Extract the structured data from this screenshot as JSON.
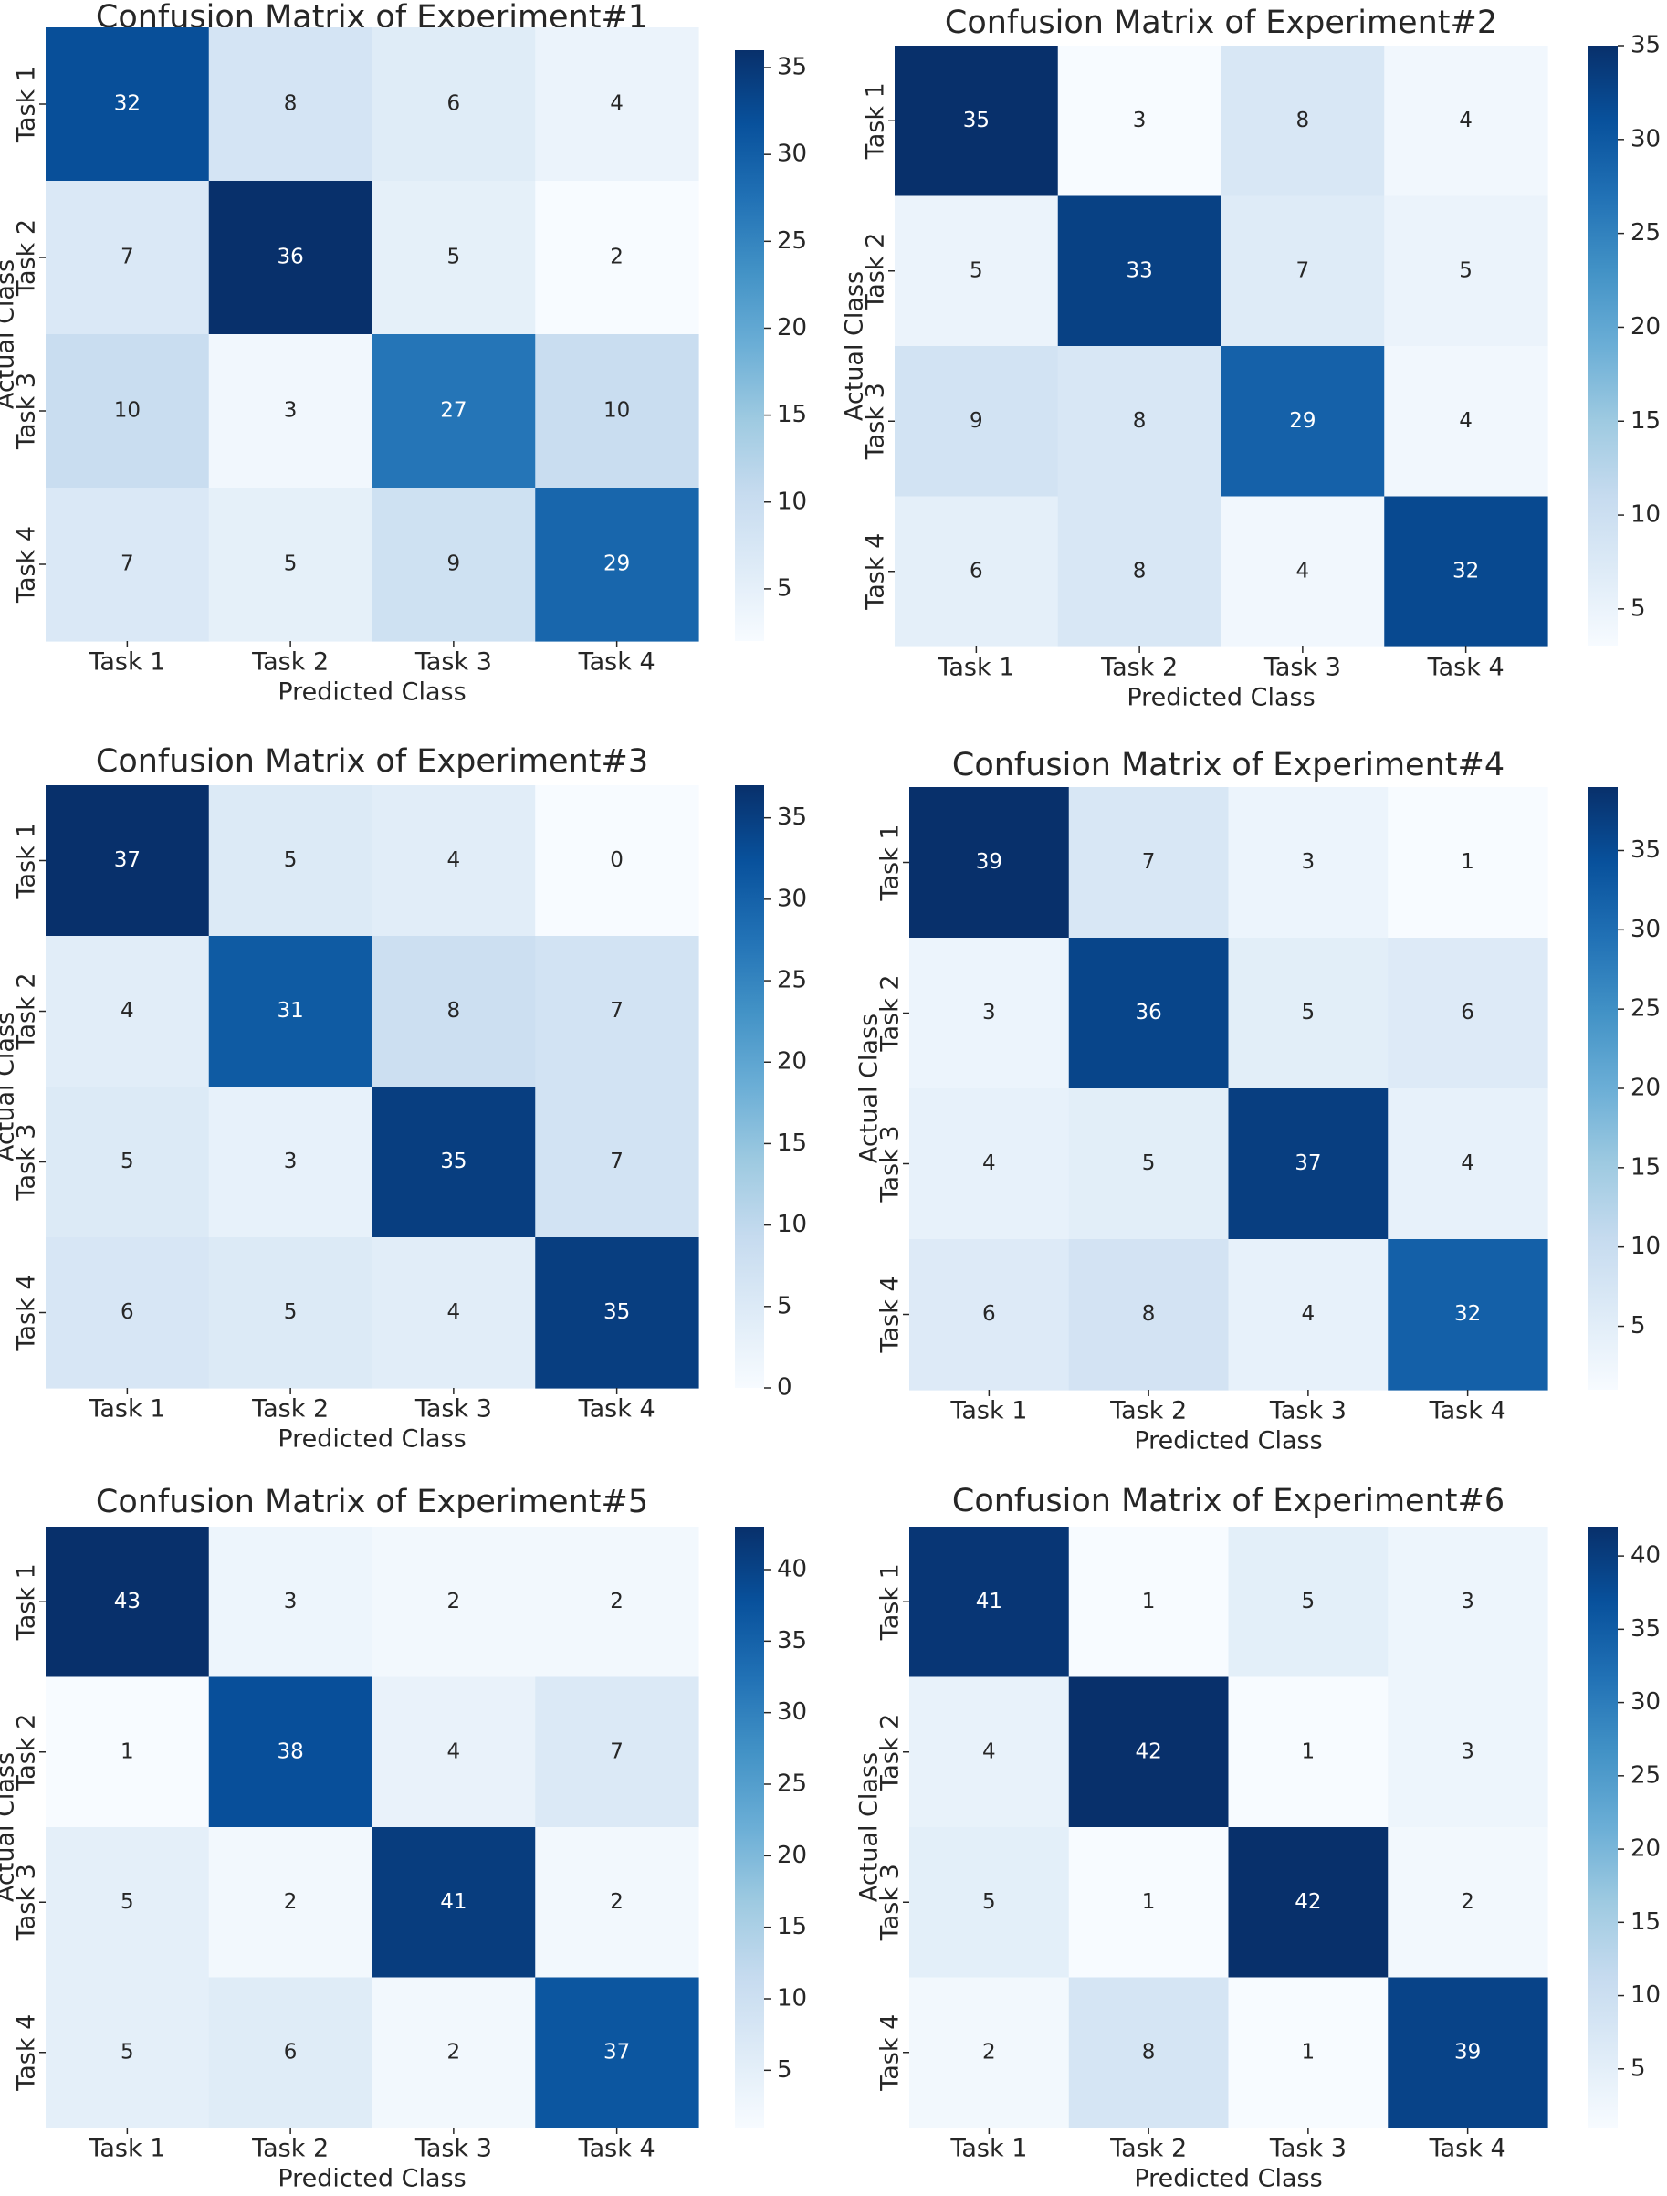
{
  "figure": {
    "xlabel": "Predicted Class",
    "ylabel": "Actual Class",
    "class_labels": [
      "Task 1",
      "Task 2",
      "Task 3",
      "Task 4"
    ]
  },
  "colors": {
    "cmap": [
      "#f7fbff",
      "#deebf7",
      "#c6dbef",
      "#9ecae1",
      "#6baed6",
      "#4292c6",
      "#2171b5",
      "#08519c",
      "#08306b"
    ],
    "light_text": "#ffffff",
    "dark_text": "#262626"
  },
  "chart_data": [
    {
      "type": "heatmap",
      "title": "Confusion Matrix of Experiment#1",
      "xlabel": "Predicted Class",
      "ylabel": "Actual Class",
      "categories": [
        "Task 1",
        "Task 2",
        "Task 3",
        "Task 4"
      ],
      "matrix": [
        [
          32,
          8,
          6,
          4
        ],
        [
          7,
          36,
          5,
          2
        ],
        [
          10,
          3,
          27,
          10
        ],
        [
          7,
          5,
          9,
          29
        ]
      ],
      "vmin": 2,
      "vmax": 36,
      "colorbar_ticks": [
        5,
        10,
        15,
        20,
        25,
        30,
        35
      ]
    },
    {
      "type": "heatmap",
      "title": "Confusion Matrix of Experiment#2",
      "xlabel": "Predicted Class",
      "ylabel": "Actual Class",
      "categories": [
        "Task 1",
        "Task 2",
        "Task 3",
        "Task 4"
      ],
      "matrix": [
        [
          35,
          3,
          8,
          4
        ],
        [
          5,
          33,
          7,
          5
        ],
        [
          9,
          8,
          29,
          4
        ],
        [
          6,
          8,
          4,
          32
        ]
      ],
      "vmin": 3,
      "vmax": 35,
      "colorbar_ticks": [
        5,
        10,
        15,
        20,
        25,
        30,
        35
      ]
    },
    {
      "type": "heatmap",
      "title": "Confusion Matrix of Experiment#3",
      "xlabel": "Predicted Class",
      "ylabel": "Actual Class",
      "categories": [
        "Task 1",
        "Task 2",
        "Task 3",
        "Task 4"
      ],
      "matrix": [
        [
          37,
          5,
          4,
          0
        ],
        [
          4,
          31,
          8,
          7
        ],
        [
          5,
          3,
          35,
          7
        ],
        [
          6,
          5,
          4,
          35
        ]
      ],
      "vmin": 0,
      "vmax": 37,
      "colorbar_ticks": [
        0,
        5,
        10,
        15,
        20,
        25,
        30,
        35
      ]
    },
    {
      "type": "heatmap",
      "title": "Confusion Matrix of Experiment#4",
      "xlabel": "Predicted Class",
      "ylabel": "Actual Class",
      "categories": [
        "Task 1",
        "Task 2",
        "Task 3",
        "Task 4"
      ],
      "matrix": [
        [
          39,
          7,
          3,
          1
        ],
        [
          3,
          36,
          5,
          6
        ],
        [
          4,
          5,
          37,
          4
        ],
        [
          6,
          8,
          4,
          32
        ]
      ],
      "vmin": 1,
      "vmax": 39,
      "colorbar_ticks": [
        5,
        10,
        15,
        20,
        25,
        30,
        35
      ]
    },
    {
      "type": "heatmap",
      "title": "Confusion Matrix of Experiment#5",
      "xlabel": "Predicted Class",
      "ylabel": "Actual Class",
      "categories": [
        "Task 1",
        "Task 2",
        "Task 3",
        "Task 4"
      ],
      "matrix": [
        [
          43,
          3,
          2,
          2
        ],
        [
          1,
          38,
          4,
          7
        ],
        [
          5,
          2,
          41,
          2
        ],
        [
          5,
          6,
          2,
          37
        ]
      ],
      "vmin": 1,
      "vmax": 43,
      "colorbar_ticks": [
        5,
        10,
        15,
        20,
        25,
        30,
        35,
        40
      ]
    },
    {
      "type": "heatmap",
      "title": "Confusion Matrix of Experiment#6",
      "xlabel": "Predicted Class",
      "ylabel": "Actual Class",
      "categories": [
        "Task 1",
        "Task 2",
        "Task 3",
        "Task 4"
      ],
      "matrix": [
        [
          41,
          1,
          5,
          3
        ],
        [
          4,
          42,
          1,
          3
        ],
        [
          5,
          1,
          42,
          2
        ],
        [
          2,
          8,
          1,
          39
        ]
      ],
      "vmin": 1,
      "vmax": 42,
      "colorbar_ticks": [
        5,
        10,
        15,
        20,
        25,
        30,
        35,
        40
      ]
    }
  ]
}
